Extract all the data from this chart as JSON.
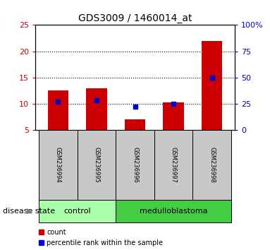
{
  "title": "GDS3009 / 1460014_at",
  "samples": [
    "GSM236994",
    "GSM236995",
    "GSM236996",
    "GSM236997",
    "GSM236998"
  ],
  "count_values": [
    12.5,
    13.0,
    7.0,
    10.2,
    22.0
  ],
  "percentile_values": [
    27.0,
    28.5,
    22.0,
    25.0,
    50.0
  ],
  "ylim_left": [
    5,
    25
  ],
  "ylim_right": [
    0,
    100
  ],
  "yticks_left": [
    5,
    10,
    15,
    20,
    25
  ],
  "yticks_right": [
    0,
    25,
    50,
    75,
    100
  ],
  "groups": [
    {
      "label": "control",
      "indices": [
        0,
        1
      ]
    },
    {
      "label": "medulloblastoma",
      "indices": [
        2,
        3,
        4
      ]
    }
  ],
  "bar_color": "#CC0000",
  "percentile_color": "#0000CC",
  "bar_bottom": 5,
  "bar_width": 0.55,
  "legend_count_label": "count",
  "legend_percentile_label": "percentile rank within the sample",
  "disease_state_label": "disease state",
  "left_ytick_color": "#CC0000",
  "right_ytick_color": "#0000CC",
  "grid_color": "black",
  "sample_box_color": "#C8C8C8",
  "control_color": "#AAFFAA",
  "medulloblastoma_color": "#44CC44",
  "title_fontsize": 10,
  "tick_fontsize": 8,
  "sample_fontsize": 6,
  "group_fontsize": 8,
  "legend_fontsize": 7,
  "disease_state_fontsize": 8
}
